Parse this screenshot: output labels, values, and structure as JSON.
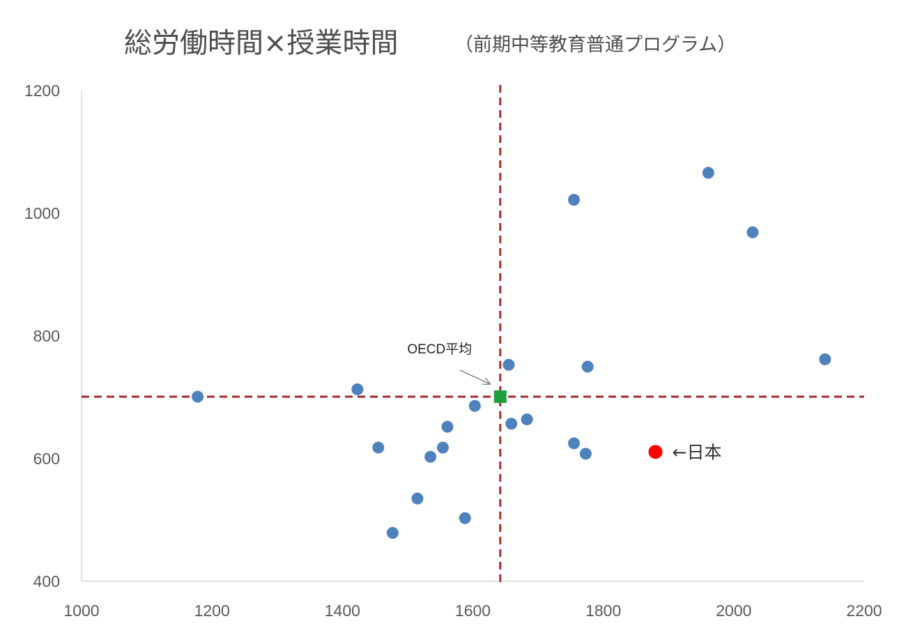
{
  "chart_data": {
    "type": "scatter",
    "title": "総労働時間×授業時間",
    "subtitle": "（前期中等教育普通プログラム）",
    "xlabel": "",
    "ylabel": "",
    "xlim": [
      1000,
      2200
    ],
    "ylim": [
      400,
      1200
    ],
    "x_ticks": [
      "1000",
      "1200",
      "1400",
      "1600",
      "1800",
      "2000",
      "2200"
    ],
    "y_ticks": [
      "400",
      "600",
      "800",
      "1000",
      "1200"
    ],
    "grid": false,
    "points": [
      {
        "x": 1178,
        "y": 701
      },
      {
        "x": 1423,
        "y": 713
      },
      {
        "x": 1455,
        "y": 618
      },
      {
        "x": 1477,
        "y": 479
      },
      {
        "x": 1515,
        "y": 535
      },
      {
        "x": 1535,
        "y": 603
      },
      {
        "x": 1554,
        "y": 618
      },
      {
        "x": 1561,
        "y": 652
      },
      {
        "x": 1588,
        "y": 503
      },
      {
        "x": 1603,
        "y": 686
      },
      {
        "x": 1655,
        "y": 753
      },
      {
        "x": 1659,
        "y": 657
      },
      {
        "x": 1683,
        "y": 664
      },
      {
        "x": 1755,
        "y": 625
      },
      {
        "x": 1755,
        "y": 1022
      },
      {
        "x": 1773,
        "y": 608
      },
      {
        "x": 1776,
        "y": 750
      },
      {
        "x": 1961,
        "y": 1066
      },
      {
        "x": 2029,
        "y": 969
      },
      {
        "x": 2140,
        "y": 762
      }
    ],
    "japan": {
      "label": "←日本",
      "x": 1880,
      "y": 611
    },
    "oecd_average": {
      "label": "OECD平均",
      "x": 1642,
      "y": 701
    },
    "colors": {
      "points": "#4f81bd",
      "japan": "#ff0000",
      "oecd": "#1e9e3f",
      "reference_lines": "#a52a2a",
      "axis": "#d9d9d9"
    }
  }
}
